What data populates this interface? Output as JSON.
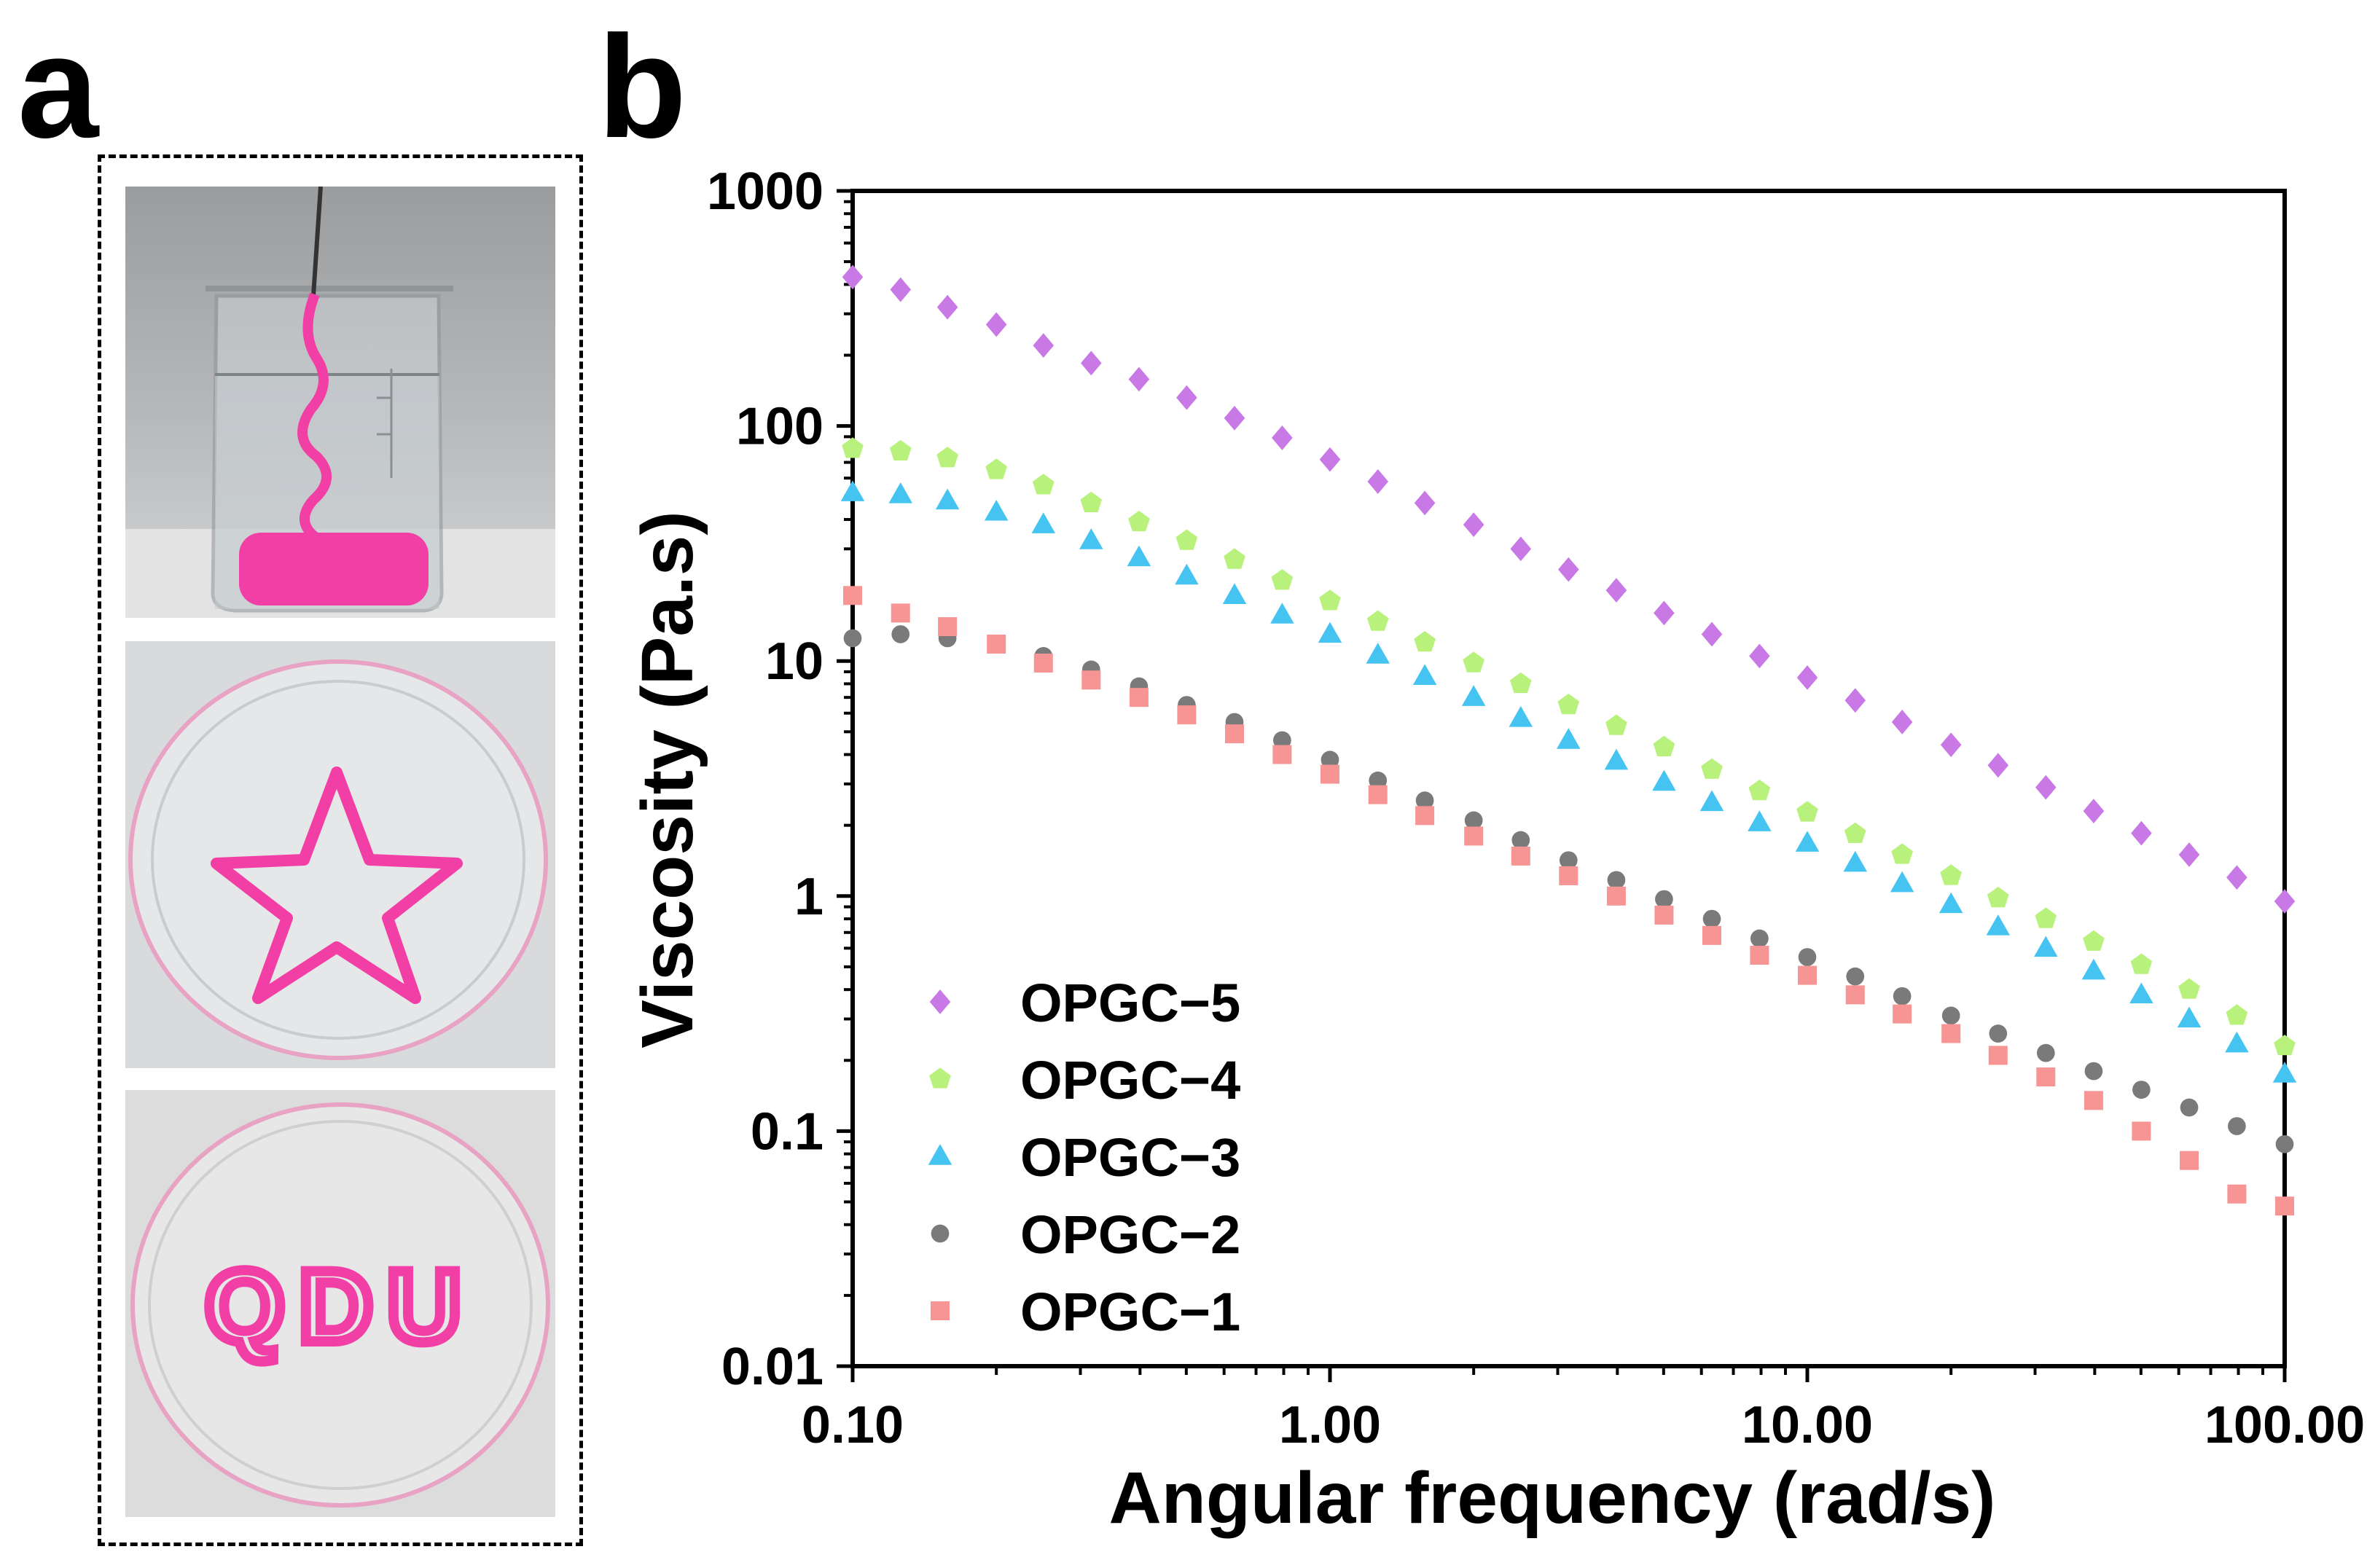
{
  "panels": {
    "a": "a",
    "b": "b"
  },
  "photos": {
    "qdu_text": "QDU"
  },
  "colors": {
    "OPGC-5": "#c879e6",
    "OPGC-4": "#b8f27c",
    "OPGC-3": "#45c4f2",
    "OPGC-2": "#7a7a7a",
    "OPGC-1": "#f79494",
    "hydrogel": "#f23fa6"
  },
  "chart_data": {
    "type": "scatter",
    "xlabel": "Angular frequency (rad/s)",
    "ylabel": "Viscosity (Pa.s)",
    "xscale": "log",
    "yscale": "log",
    "xlim": [
      0.1,
      100
    ],
    "ylim": [
      0.01,
      1000
    ],
    "xticks": [
      0.1,
      1,
      10,
      100
    ],
    "xtick_labels": [
      "0.10",
      "1.00",
      "10.00",
      "100.00"
    ],
    "yticks": [
      0.01,
      0.1,
      1,
      10,
      100,
      1000
    ],
    "ytick_labels": [
      "0.01",
      "0.1",
      "1",
      "10",
      "100",
      "1000"
    ],
    "grid": false,
    "legend_position": "bottom-left",
    "x": [
      0.1,
      0.126,
      0.158,
      0.2,
      0.251,
      0.316,
      0.398,
      0.501,
      0.631,
      0.794,
      1.0,
      1.26,
      1.58,
      2.0,
      2.51,
      3.16,
      3.98,
      5.01,
      6.31,
      7.94,
      10.0,
      12.6,
      15.8,
      20.0,
      25.1,
      31.6,
      39.8,
      50.1,
      63.1,
      79.4,
      100.0
    ],
    "series": [
      {
        "name": "OPGC−5",
        "marker": "diamond",
        "values": [
          430,
          380,
          320,
          270,
          220,
          185,
          158,
          132,
          108,
          89,
          72,
          58,
          47,
          38,
          30,
          24.5,
          20,
          16,
          13,
          10.5,
          8.5,
          6.8,
          5.5,
          4.4,
          3.6,
          2.9,
          2.3,
          1.85,
          1.5,
          1.2,
          0.95
        ]
      },
      {
        "name": "OPGC−4",
        "marker": "pentagon",
        "values": [
          80,
          78,
          73,
          65,
          56,
          47,
          39,
          32.5,
          27,
          22,
          18,
          14.7,
          12,
          9.8,
          8,
          6.5,
          5.3,
          4.3,
          3.45,
          2.8,
          2.27,
          1.84,
          1.5,
          1.22,
          0.98,
          0.8,
          0.64,
          0.51,
          0.4,
          0.31,
          0.23
        ]
      },
      {
        "name": "OPGC−3",
        "marker": "triangle",
        "values": [
          52,
          51,
          48,
          43,
          38,
          32.5,
          27.5,
          23,
          19,
          15.7,
          13,
          10.6,
          8.6,
          7,
          5.7,
          4.6,
          3.75,
          3.05,
          2.5,
          2.05,
          1.68,
          1.38,
          1.13,
          0.92,
          0.74,
          0.6,
          0.48,
          0.38,
          0.3,
          0.235,
          0.175
        ]
      },
      {
        "name": "OPGC−2",
        "marker": "circle",
        "values": [
          12.5,
          13,
          12.5,
          11.8,
          10.5,
          9.2,
          7.8,
          6.5,
          5.5,
          4.6,
          3.8,
          3.1,
          2.55,
          2.1,
          1.73,
          1.42,
          1.17,
          0.97,
          0.8,
          0.66,
          0.55,
          0.455,
          0.375,
          0.31,
          0.26,
          0.215,
          0.18,
          0.15,
          0.126,
          0.105,
          0.088
        ]
      },
      {
        "name": "OPGC−1",
        "marker": "square",
        "values": [
          19,
          16,
          14,
          11.8,
          9.8,
          8.3,
          7,
          5.9,
          4.9,
          4,
          3.3,
          2.7,
          2.2,
          1.8,
          1.48,
          1.22,
          1,
          0.83,
          0.68,
          0.56,
          0.46,
          0.38,
          0.315,
          0.26,
          0.21,
          0.17,
          0.135,
          0.1,
          0.075,
          0.054,
          0.048
        ]
      }
    ]
  }
}
